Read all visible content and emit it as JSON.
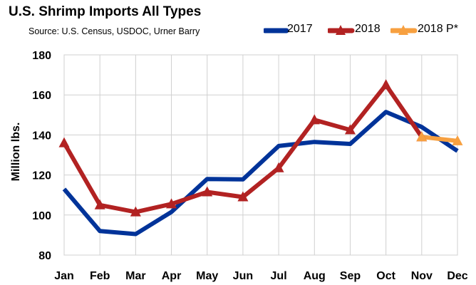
{
  "chart_data": {
    "type": "line",
    "title": "U.S. Shrimp Imports All Types",
    "subtitle": "Source: U.S. Census, USDOC, Urner Barry",
    "ylabel": "Million lbs.",
    "xlabel": "",
    "categories": [
      "Jan",
      "Feb",
      "Mar",
      "Apr",
      "May",
      "Jun",
      "Jul",
      "Aug",
      "Sep",
      "Oct",
      "Nov",
      "Dec"
    ],
    "ylim": [
      80,
      180
    ],
    "yticks": [
      80,
      100,
      120,
      140,
      160,
      180
    ],
    "grid": true,
    "legend_position": "top-right",
    "series": [
      {
        "name": "2017",
        "color": "#003399",
        "marker": "none",
        "values": [
          113,
          92,
          90.5,
          101.5,
          118,
          117.8,
          134.5,
          136.5,
          135.5,
          151.5,
          144,
          132
        ]
      },
      {
        "name": "2018",
        "color": "#B22222",
        "marker": "triangle",
        "values": [
          136,
          105,
          101.5,
          105.5,
          111.5,
          109,
          123.5,
          147.5,
          142.5,
          165,
          139,
          null
        ]
      },
      {
        "name": "2018 P*",
        "color": "#F7A040",
        "marker": "triangle",
        "values": [
          null,
          null,
          null,
          null,
          null,
          null,
          null,
          null,
          null,
          null,
          139,
          137
        ]
      }
    ]
  }
}
